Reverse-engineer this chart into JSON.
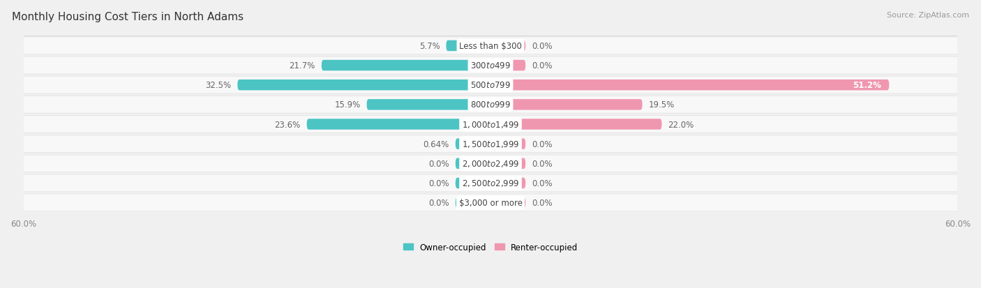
{
  "title": "Monthly Housing Cost Tiers in North Adams",
  "source": "Source: ZipAtlas.com",
  "categories": [
    "Less than $300",
    "$300 to $499",
    "$500 to $799",
    "$800 to $999",
    "$1,000 to $1,499",
    "$1,500 to $1,999",
    "$2,000 to $2,499",
    "$2,500 to $2,999",
    "$3,000 or more"
  ],
  "owner_values": [
    5.7,
    21.7,
    32.5,
    15.9,
    23.6,
    0.64,
    0.0,
    0.0,
    0.0
  ],
  "renter_values": [
    0.0,
    0.0,
    51.2,
    19.5,
    22.0,
    0.0,
    0.0,
    0.0,
    0.0
  ],
  "owner_color": "#4DC4C4",
  "renter_color": "#F097B0",
  "owner_label": "Owner-occupied",
  "renter_label": "Renter-occupied",
  "xlim": 60.0,
  "bar_height": 0.55,
  "min_stub": 4.5,
  "background_color": "#f0f0f0",
  "row_light_color": "#e8e8e8",
  "row_white_color": "#f8f8f8",
  "title_fontsize": 11,
  "label_fontsize": 8.5,
  "axis_label_fontsize": 8.5,
  "source_fontsize": 8,
  "cat_label_fontsize": 8.5
}
